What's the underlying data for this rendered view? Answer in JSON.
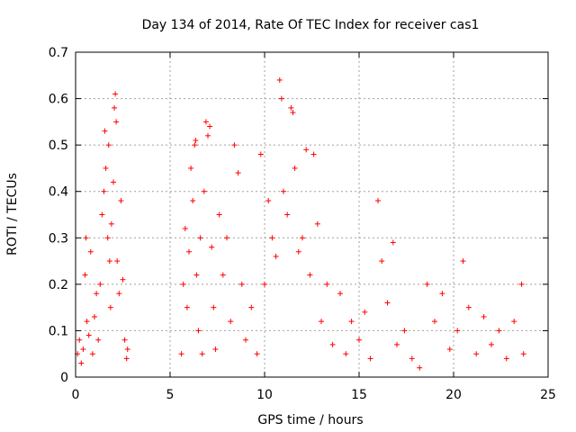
{
  "chart_data": {
    "type": "scatter",
    "title": "Day 134 of 2014, Rate Of TEC Index for receiver cas1",
    "xlabel": "GPS time / hours",
    "ylabel": "ROTI / TECUs",
    "xlim": [
      0,
      25
    ],
    "ylim": [
      0,
      0.7
    ],
    "x_ticks": [
      "0",
      "5",
      "10",
      "15",
      "20",
      "25"
    ],
    "y_ticks": [
      "0",
      "0.1",
      "0.2",
      "0.3",
      "0.4",
      "0.5",
      "0.6",
      "0.7"
    ],
    "grid": true,
    "marker": "+",
    "color": "#ff0000",
    "series": [
      {
        "name": "ROTI",
        "points": [
          [
            0.1,
            0.05
          ],
          [
            0.2,
            0.08
          ],
          [
            0.3,
            0.03
          ],
          [
            0.4,
            0.06
          ],
          [
            0.5,
            0.22
          ],
          [
            0.55,
            0.3
          ],
          [
            0.6,
            0.12
          ],
          [
            0.7,
            0.09
          ],
          [
            0.8,
            0.27
          ],
          [
            0.9,
            0.05
          ],
          [
            1.0,
            0.13
          ],
          [
            1.1,
            0.18
          ],
          [
            1.2,
            0.08
          ],
          [
            1.3,
            0.2
          ],
          [
            1.4,
            0.35
          ],
          [
            1.5,
            0.4
          ],
          [
            1.55,
            0.53
          ],
          [
            1.6,
            0.45
          ],
          [
            1.7,
            0.3
          ],
          [
            1.75,
            0.5
          ],
          [
            1.8,
            0.25
          ],
          [
            1.85,
            0.15
          ],
          [
            1.9,
            0.33
          ],
          [
            2.0,
            0.42
          ],
          [
            2.05,
            0.58
          ],
          [
            2.1,
            0.61
          ],
          [
            2.15,
            0.55
          ],
          [
            2.2,
            0.25
          ],
          [
            2.3,
            0.18
          ],
          [
            2.4,
            0.38
          ],
          [
            2.5,
            0.21
          ],
          [
            2.6,
            0.08
          ],
          [
            2.7,
            0.04
          ],
          [
            2.75,
            0.06
          ],
          [
            5.6,
            0.05
          ],
          [
            5.7,
            0.2
          ],
          [
            5.8,
            0.32
          ],
          [
            5.9,
            0.15
          ],
          [
            6.0,
            0.27
          ],
          [
            6.1,
            0.45
          ],
          [
            6.2,
            0.38
          ],
          [
            6.3,
            0.5
          ],
          [
            6.35,
            0.51
          ],
          [
            6.4,
            0.22
          ],
          [
            6.5,
            0.1
          ],
          [
            6.6,
            0.3
          ],
          [
            6.7,
            0.05
          ],
          [
            6.8,
            0.4
          ],
          [
            6.9,
            0.55
          ],
          [
            7.0,
            0.52
          ],
          [
            7.1,
            0.54
          ],
          [
            7.2,
            0.28
          ],
          [
            7.3,
            0.15
          ],
          [
            7.4,
            0.06
          ],
          [
            7.6,
            0.35
          ],
          [
            7.8,
            0.22
          ],
          [
            8.0,
            0.3
          ],
          [
            8.2,
            0.12
          ],
          [
            8.4,
            0.5
          ],
          [
            8.6,
            0.44
          ],
          [
            8.8,
            0.2
          ],
          [
            9.0,
            0.08
          ],
          [
            9.3,
            0.15
          ],
          [
            9.6,
            0.05
          ],
          [
            9.8,
            0.48
          ],
          [
            10.0,
            0.2
          ],
          [
            10.2,
            0.38
          ],
          [
            10.4,
            0.3
          ],
          [
            10.6,
            0.26
          ],
          [
            10.8,
            0.64
          ],
          [
            10.9,
            0.6
          ],
          [
            11.0,
            0.4
          ],
          [
            11.2,
            0.35
          ],
          [
            11.4,
            0.58
          ],
          [
            11.5,
            0.57
          ],
          [
            11.6,
            0.45
          ],
          [
            11.8,
            0.27
          ],
          [
            12.0,
            0.3
          ],
          [
            12.2,
            0.49
          ],
          [
            12.4,
            0.22
          ],
          [
            12.6,
            0.48
          ],
          [
            12.8,
            0.33
          ],
          [
            13.0,
            0.12
          ],
          [
            13.3,
            0.2
          ],
          [
            13.6,
            0.07
          ],
          [
            14.0,
            0.18
          ],
          [
            14.3,
            0.05
          ],
          [
            14.6,
            0.12
          ],
          [
            15.0,
            0.08
          ],
          [
            15.3,
            0.14
          ],
          [
            15.6,
            0.04
          ],
          [
            16.0,
            0.38
          ],
          [
            16.2,
            0.25
          ],
          [
            16.5,
            0.16
          ],
          [
            16.8,
            0.29
          ],
          [
            17.0,
            0.07
          ],
          [
            17.4,
            0.1
          ],
          [
            17.8,
            0.04
          ],
          [
            18.2,
            0.02
          ],
          [
            18.6,
            0.2
          ],
          [
            19.0,
            0.12
          ],
          [
            19.4,
            0.18
          ],
          [
            19.8,
            0.06
          ],
          [
            20.2,
            0.1
          ],
          [
            20.5,
            0.25
          ],
          [
            20.8,
            0.15
          ],
          [
            21.2,
            0.05
          ],
          [
            21.6,
            0.13
          ],
          [
            22.0,
            0.07
          ],
          [
            22.4,
            0.1
          ],
          [
            22.8,
            0.04
          ],
          [
            23.2,
            0.12
          ],
          [
            23.6,
            0.2
          ],
          [
            23.7,
            0.05
          ]
        ]
      }
    ]
  }
}
